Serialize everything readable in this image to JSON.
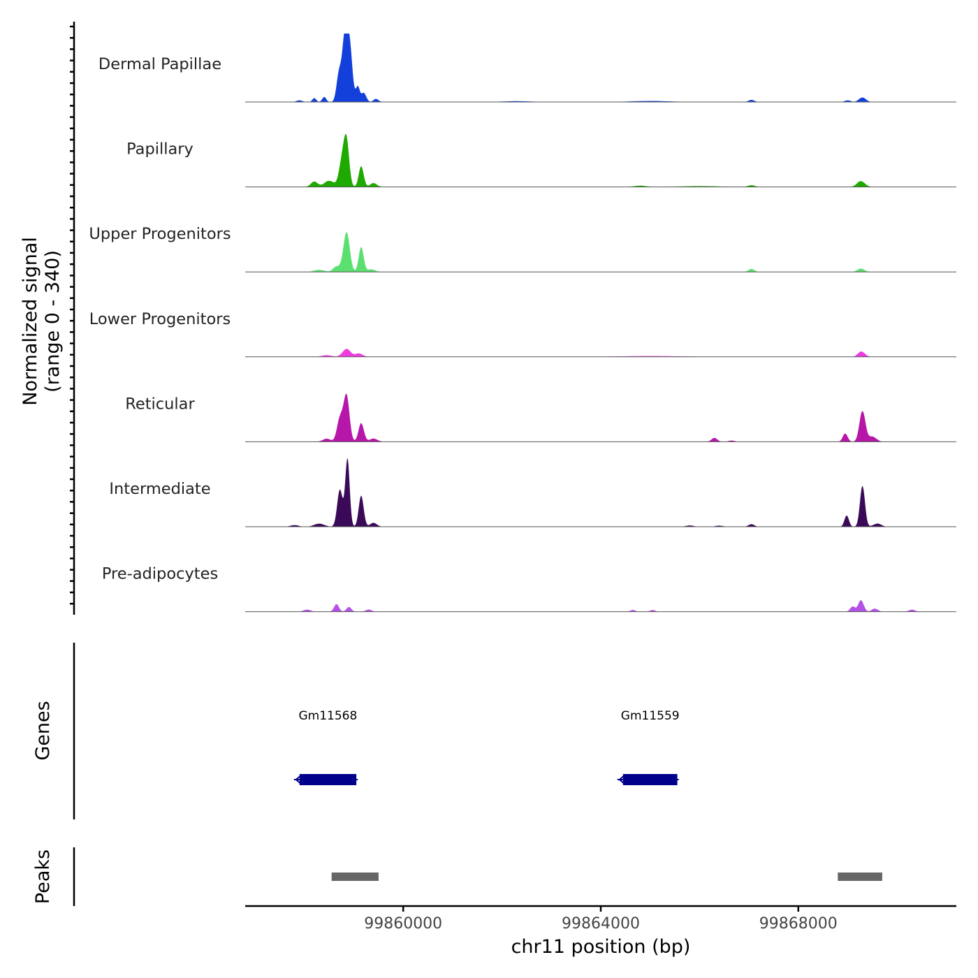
{
  "chart_data": {
    "type": "area",
    "title": "",
    "chromosome": "chr11",
    "xlabel": "chr11 position (bp)",
    "ylabel_line1": "Normalized signal",
    "ylabel_line2": "(range 0 - 340)",
    "y_range": [
      0,
      340
    ],
    "x_range": [
      99856800,
      99871200
    ],
    "x_ticks": [
      99860000,
      99864000,
      99868000
    ],
    "x_tick_labels": [
      "99860000",
      "99864000",
      "99868000"
    ],
    "series": [
      {
        "name": "Dermal Papillae",
        "color": "#1340DB",
        "peaks": [
          {
            "x": 99858820,
            "h": 320,
            "w": 55
          },
          {
            "x": 99858920,
            "h": 240,
            "w": 55
          },
          {
            "x": 99858700,
            "h": 130,
            "w": 50
          },
          {
            "x": 99859080,
            "h": 70,
            "w": 40
          },
          {
            "x": 99859200,
            "h": 45,
            "w": 50
          },
          {
            "x": 99858400,
            "h": 25,
            "w": 40
          },
          {
            "x": 99858200,
            "h": 18,
            "w": 40
          },
          {
            "x": 99859450,
            "h": 15,
            "w": 50
          },
          {
            "x": 99857900,
            "h": 8,
            "w": 60
          },
          {
            "x": 99867050,
            "h": 10,
            "w": 60
          },
          {
            "x": 99869300,
            "h": 22,
            "w": 70
          },
          {
            "x": 99869000,
            "h": 8,
            "w": 60
          },
          {
            "x": 99865000,
            "h": 5,
            "w": 400
          },
          {
            "x": 99862300,
            "h": 4,
            "w": 300
          }
        ]
      },
      {
        "name": "Papillary",
        "color": "#1EAA00",
        "peaks": [
          {
            "x": 99858850,
            "h": 210,
            "w": 55
          },
          {
            "x": 99858760,
            "h": 120,
            "w": 60
          },
          {
            "x": 99859150,
            "h": 100,
            "w": 50
          },
          {
            "x": 99858500,
            "h": 30,
            "w": 100
          },
          {
            "x": 99858200,
            "h": 25,
            "w": 70
          },
          {
            "x": 99859400,
            "h": 18,
            "w": 70
          },
          {
            "x": 99867050,
            "h": 8,
            "w": 70
          },
          {
            "x": 99869270,
            "h": 28,
            "w": 80
          },
          {
            "x": 99864800,
            "h": 6,
            "w": 120
          },
          {
            "x": 99866000,
            "h": 4,
            "w": 400
          }
        ]
      },
      {
        "name": "Upper Progenitors",
        "color": "#5BE070",
        "peaks": [
          {
            "x": 99858850,
            "h": 190,
            "w": 65
          },
          {
            "x": 99859150,
            "h": 120,
            "w": 50
          },
          {
            "x": 99858650,
            "h": 25,
            "w": 70
          },
          {
            "x": 99859350,
            "h": 12,
            "w": 80
          },
          {
            "x": 99858300,
            "h": 10,
            "w": 100
          },
          {
            "x": 99867050,
            "h": 14,
            "w": 60
          },
          {
            "x": 99869270,
            "h": 16,
            "w": 70
          }
        ]
      },
      {
        "name": "Lower Progenitors",
        "color": "#EE3BE0",
        "peaks": [
          {
            "x": 99858850,
            "h": 38,
            "w": 80
          },
          {
            "x": 99859100,
            "h": 16,
            "w": 80
          },
          {
            "x": 99858450,
            "h": 8,
            "w": 100
          },
          {
            "x": 99869280,
            "h": 26,
            "w": 70
          },
          {
            "x": 99865000,
            "h": 4,
            "w": 600
          }
        ]
      },
      {
        "name": "Reticular",
        "color": "#B617A8",
        "peaks": [
          {
            "x": 99858850,
            "h": 220,
            "w": 60
          },
          {
            "x": 99858720,
            "h": 110,
            "w": 60
          },
          {
            "x": 99859150,
            "h": 90,
            "w": 55
          },
          {
            "x": 99858450,
            "h": 15,
            "w": 80
          },
          {
            "x": 99859400,
            "h": 15,
            "w": 80
          },
          {
            "x": 99869300,
            "h": 150,
            "w": 60
          },
          {
            "x": 99868950,
            "h": 40,
            "w": 50
          },
          {
            "x": 99869500,
            "h": 25,
            "w": 80
          },
          {
            "x": 99866300,
            "h": 18,
            "w": 60
          },
          {
            "x": 99866650,
            "h": 6,
            "w": 60
          }
        ]
      },
      {
        "name": "Intermediate",
        "color": "#3A0A59",
        "peaks": [
          {
            "x": 99858870,
            "h": 320,
            "w": 45
          },
          {
            "x": 99858720,
            "h": 180,
            "w": 55
          },
          {
            "x": 99859150,
            "h": 150,
            "w": 50
          },
          {
            "x": 99859400,
            "h": 18,
            "w": 70
          },
          {
            "x": 99858300,
            "h": 15,
            "w": 100
          },
          {
            "x": 99857800,
            "h": 8,
            "w": 80
          },
          {
            "x": 99869300,
            "h": 200,
            "w": 50
          },
          {
            "x": 99868980,
            "h": 55,
            "w": 45
          },
          {
            "x": 99869600,
            "h": 15,
            "w": 80
          },
          {
            "x": 99867050,
            "h": 12,
            "w": 60
          },
          {
            "x": 99865800,
            "h": 6,
            "w": 80
          },
          {
            "x": 99866400,
            "h": 5,
            "w": 80
          }
        ]
      },
      {
        "name": "Pre-adipocytes",
        "color": "#B451E6",
        "peaks": [
          {
            "x": 99858650,
            "h": 35,
            "w": 50
          },
          {
            "x": 99858900,
            "h": 22,
            "w": 50
          },
          {
            "x": 99858050,
            "h": 10,
            "w": 70
          },
          {
            "x": 99859300,
            "h": 10,
            "w": 60
          },
          {
            "x": 99864650,
            "h": 8,
            "w": 50
          },
          {
            "x": 99865050,
            "h": 8,
            "w": 50
          },
          {
            "x": 99869270,
            "h": 55,
            "w": 55
          },
          {
            "x": 99869100,
            "h": 25,
            "w": 50
          },
          {
            "x": 99869550,
            "h": 15,
            "w": 60
          },
          {
            "x": 99870300,
            "h": 10,
            "w": 60
          }
        ]
      }
    ],
    "genes_label": "Genes",
    "genes": [
      {
        "name": "Gm11568",
        "start": 99857900,
        "end": 99859050,
        "strand": "-",
        "color": "#00008B"
      },
      {
        "name": "Gm11559",
        "start": 99864450,
        "end": 99865550,
        "strand": "-",
        "color": "#00008B"
      }
    ],
    "peaks_label": "Peaks",
    "peak_regions": [
      {
        "start": 99858550,
        "end": 99859500,
        "color": "#666666"
      },
      {
        "start": 99868800,
        "end": 99869700,
        "color": "#666666"
      }
    ]
  }
}
